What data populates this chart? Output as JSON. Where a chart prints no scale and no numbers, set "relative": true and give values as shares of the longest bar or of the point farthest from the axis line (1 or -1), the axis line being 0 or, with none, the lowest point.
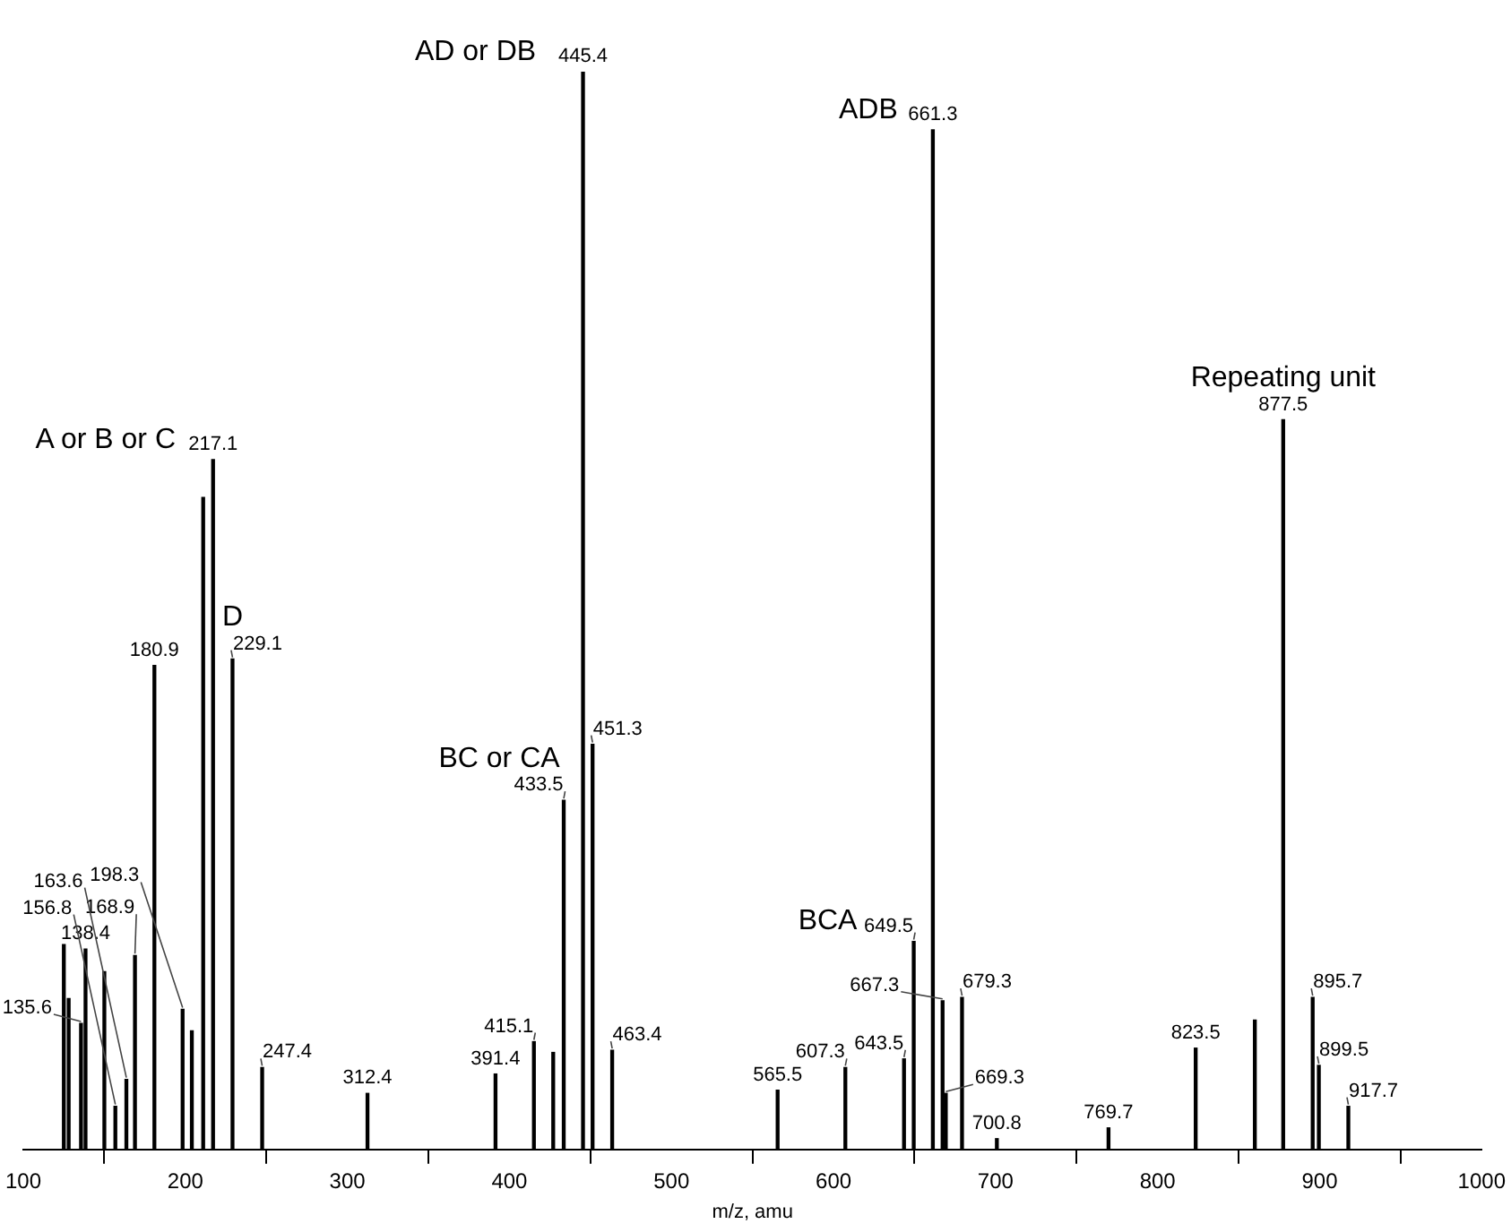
{
  "chart_data": {
    "type": "bar",
    "relative": true,
    "xlabel": "m/z, amu",
    "xlim": [
      100,
      1000
    ],
    "xticks": [
      100,
      200,
      300,
      400,
      500,
      600,
      700,
      800,
      900,
      1000
    ],
    "tick_labels": "x",
    "grid": false,
    "legend": false,
    "x": [
      125.0,
      128.0,
      135.6,
      138.4,
      150.0,
      156.8,
      163.6,
      168.9,
      180.9,
      198.3,
      204.0,
      211.0,
      217.1,
      229.1,
      247.4,
      312.4,
      391.4,
      415.1,
      427.0,
      433.5,
      445.4,
      451.3,
      463.4,
      565.5,
      607.3,
      643.5,
      649.5,
      661.3,
      667.3,
      669.3,
      679.3,
      700.8,
      769.7,
      823.5,
      860.0,
      877.5,
      895.7,
      899.5,
      917.7
    ],
    "values": [
      0.19,
      0.14,
      0.117,
      0.186,
      0.165,
      0.04,
      0.065,
      0.18,
      0.449,
      0.13,
      0.11,
      0.605,
      0.64,
      0.455,
      0.076,
      0.052,
      0.07,
      0.1,
      0.09,
      0.324,
      1.0,
      0.376,
      0.092,
      0.055,
      0.076,
      0.084,
      0.193,
      0.946,
      0.138,
      0.052,
      0.141,
      0.01,
      0.02,
      0.094,
      0.12,
      0.677,
      0.141,
      0.078,
      0.04
    ],
    "color": "#000000",
    "annotations": [
      {
        "text": "445.4",
        "x": 445.4,
        "y": 1.0
      },
      {
        "text": "661.3",
        "x": 661.3,
        "y": 0.946
      },
      {
        "text": "877.5",
        "x": 877.5,
        "y": 0.677
      },
      {
        "text": "217.1",
        "x": 217.1,
        "y": 0.64
      },
      {
        "text": "229.1",
        "x": 229.1,
        "y": 0.455
      },
      {
        "text": "180.9",
        "x": 180.9,
        "y": 0.449
      },
      {
        "text": "451.3",
        "x": 451.3,
        "y": 0.376
      },
      {
        "text": "433.5",
        "x": 433.5,
        "y": 0.324
      },
      {
        "text": "649.5",
        "x": 649.5,
        "y": 0.193
      },
      {
        "text": "138.4",
        "x": 138.4,
        "y": 0.186
      },
      {
        "text": "168.9",
        "x": 168.9,
        "y": 0.18
      },
      {
        "text": "679.3",
        "x": 679.3,
        "y": 0.141
      },
      {
        "text": "895.7",
        "x": 895.7,
        "y": 0.141
      },
      {
        "text": "667.3",
        "x": 667.3,
        "y": 0.138
      },
      {
        "text": "198.3",
        "x": 198.3,
        "y": 0.13
      },
      {
        "text": "135.6",
        "x": 135.6,
        "y": 0.117
      },
      {
        "text": "415.1",
        "x": 415.1,
        "y": 0.1
      },
      {
        "text": "823.5",
        "x": 823.5,
        "y": 0.094
      },
      {
        "text": "463.4",
        "x": 463.4,
        "y": 0.092
      },
      {
        "text": "643.5",
        "x": 643.5,
        "y": 0.084
      },
      {
        "text": "899.5",
        "x": 899.5,
        "y": 0.078
      },
      {
        "text": "247.4",
        "x": 247.4,
        "y": 0.076
      },
      {
        "text": "607.3",
        "x": 607.3,
        "y": 0.076
      },
      {
        "text": "391.4",
        "x": 391.4,
        "y": 0.07
      },
      {
        "text": "163.6",
        "x": 163.6,
        "y": 0.065
      },
      {
        "text": "565.5",
        "x": 565.5,
        "y": 0.055
      },
      {
        "text": "312.4",
        "x": 312.4,
        "y": 0.052
      },
      {
        "text": "669.3",
        "x": 669.3,
        "y": 0.052
      },
      {
        "text": "156.8",
        "x": 156.8,
        "y": 0.04
      },
      {
        "text": "917.7",
        "x": 917.7,
        "y": 0.04
      },
      {
        "text": "769.7",
        "x": 769.7,
        "y": 0.02
      },
      {
        "text": "700.8",
        "x": 700.8,
        "y": 0.01
      },
      {
        "text": "AD or DB",
        "x": 445.4,
        "y": 1.0
      },
      {
        "text": "ADB",
        "x": 661.3,
        "y": 0.946
      },
      {
        "text": "Repeating unit",
        "x": 877.5,
        "y": 0.677
      },
      {
        "text": "A or B or C",
        "x": 217.1,
        "y": 0.64
      },
      {
        "text": "D",
        "x": 229.1,
        "y": 0.455
      },
      {
        "text": "BC or CA",
        "x": 433.5,
        "y": 0.324
      },
      {
        "text": "BCA",
        "x": 649.5,
        "y": 0.193
      }
    ]
  }
}
